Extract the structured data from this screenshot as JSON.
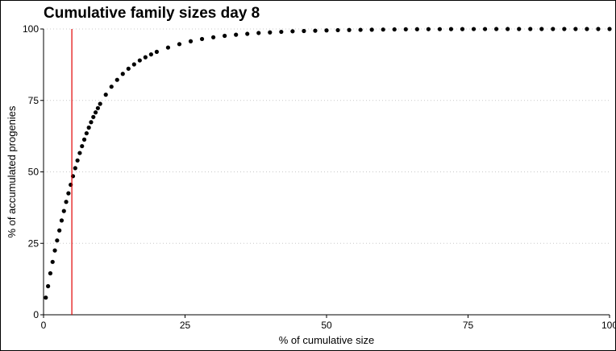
{
  "chart_data": {
    "type": "scatter",
    "title": "Cumulative family sizes day 8",
    "xlabel": "% of cumulative size",
    "ylabel": "% of accumulated progenies",
    "xlim": [
      0,
      100
    ],
    "ylim": [
      0,
      100
    ],
    "xticks": [
      0,
      25,
      50,
      75,
      100
    ],
    "yticks": [
      0,
      25,
      50,
      75,
      100
    ],
    "grid": "horizontal dotted",
    "point_color": "#000000",
    "vline": {
      "x": 5,
      "color": "#e00000"
    },
    "x": [
      0.4,
      0.8,
      1.2,
      1.6,
      2.0,
      2.4,
      2.8,
      3.2,
      3.6,
      4.0,
      4.4,
      4.8,
      5.2,
      5.6,
      6.0,
      6.4,
      6.8,
      7.2,
      7.6,
      8.0,
      8.4,
      8.8,
      9.2,
      9.6,
      10,
      11,
      12,
      13,
      14,
      15,
      16,
      17,
      18,
      19,
      20,
      22,
      24,
      26,
      28,
      30,
      32,
      34,
      36,
      38,
      40,
      42,
      44,
      46,
      48,
      50,
      52,
      54,
      56,
      58,
      60,
      62,
      64,
      66,
      68,
      70,
      72,
      74,
      76,
      78,
      80,
      82,
      84,
      86,
      88,
      90,
      92,
      94,
      96,
      98,
      100
    ],
    "y": [
      6,
      10,
      14.5,
      18.5,
      22.5,
      26,
      29.5,
      33,
      36.3,
      39.5,
      42.5,
      45.5,
      48.5,
      51.3,
      54,
      56.6,
      59,
      61.3,
      63.5,
      65.5,
      67.4,
      69.2,
      70.8,
      72.3,
      73.8,
      77,
      79.8,
      82.2,
      84.3,
      86.1,
      87.6,
      89,
      90.1,
      91.1,
      92,
      93.5,
      94.7,
      95.7,
      96.5,
      97.1,
      97.6,
      98,
      98.3,
      98.6,
      98.8,
      99,
      99.2,
      99.3,
      99.4,
      99.5,
      99.6,
      99.65,
      99.7,
      99.75,
      99.8,
      99.85,
      99.9,
      99.92,
      99.94,
      99.95,
      99.96,
      99.97,
      99.98,
      99.98,
      99.99,
      99.99,
      99.99,
      100,
      100,
      100,
      100,
      100,
      100,
      100,
      100
    ]
  }
}
